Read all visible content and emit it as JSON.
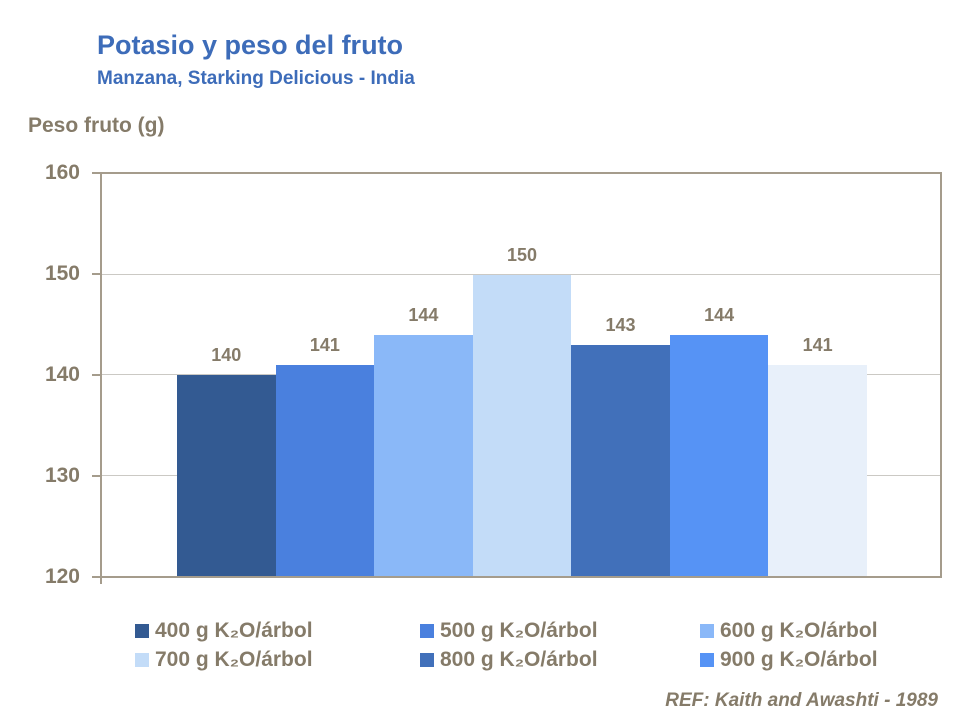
{
  "title": "Potasio y peso del fruto",
  "subtitle": "Manzana, Starking Delicious - India",
  "y_axis_title": "Peso fruto (g)",
  "reference": "REF: Kaith and Awashti - 1989",
  "colors": {
    "title_blue": "#3D6CB9",
    "text_brown": "#857B69",
    "axis_border": "#A59C8C",
    "gridline": "#CBC9C4"
  },
  "chart_data": {
    "type": "bar",
    "title": "Potasio y peso del fruto",
    "subtitle": "Manzana, Starking Delicious - India",
    "ylabel": "Peso fruto (g)",
    "ylim": [
      120,
      160
    ],
    "yticks": [
      120,
      130,
      140,
      150,
      160
    ],
    "grid": true,
    "legend_position": "bottom",
    "bars": [
      {
        "legend": "400 g K₂O/árbol",
        "value": 140,
        "color": "#335A92"
      },
      {
        "legend": "500 g K₂O/árbol",
        "value": 141,
        "color": "#4A80DE"
      },
      {
        "legend": "600 g K₂O/árbol",
        "value": 144,
        "color": "#8AB8F8"
      },
      {
        "legend": "700 g K₂O/árbol",
        "value": 150,
        "color": "#C3DCF8"
      },
      {
        "legend": "800 g K₂O/árbol",
        "value": 143,
        "color": "#4170BA"
      },
      {
        "legend": "900 g K₂O/árbol",
        "value": 144,
        "color": "#5693F5"
      },
      {
        "legend": "",
        "value": 141,
        "color": "#E8F0FA"
      }
    ],
    "legend_entries": [
      {
        "label": "400 g K₂O/árbol",
        "color": "#335A92"
      },
      {
        "label": "500 g K₂O/árbol",
        "color": "#4A80DE"
      },
      {
        "label": "600 g K₂O/árbol",
        "color": "#8AB8F8"
      },
      {
        "label": "700 g K₂O/árbol",
        "color": "#C3DCF8"
      },
      {
        "label": "800 g K₂O/árbol",
        "color": "#4170BA"
      },
      {
        "label": "900 g K₂O/árbol",
        "color": "#5693F5"
      }
    ]
  }
}
